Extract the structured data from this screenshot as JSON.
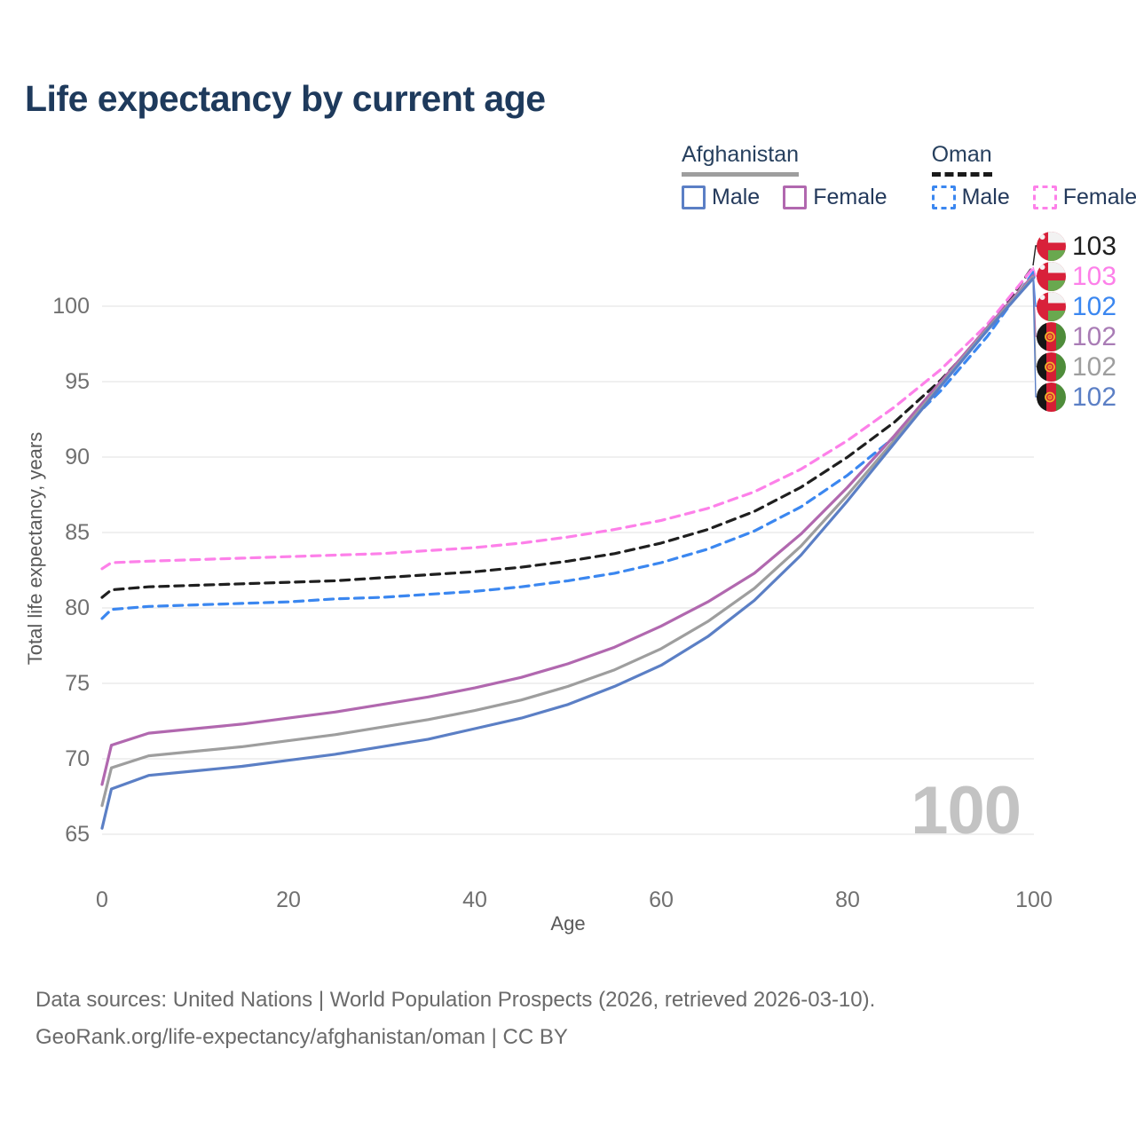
{
  "title": "Life expectancy by current age",
  "legend": {
    "groups": [
      {
        "label": "Afghanistan",
        "line_style": "solid",
        "underline_color": "#9e9e9e",
        "items": [
          {
            "label": "Male",
            "color": "#5b7fc5",
            "dashed": false
          },
          {
            "label": "Female",
            "color": "#b168af",
            "dashed": false
          }
        ]
      },
      {
        "label": "Oman",
        "line_style": "dashed",
        "underline_color": "#1a1a1a",
        "items": [
          {
            "label": "Male",
            "color": "#3b87f0",
            "dashed": true
          },
          {
            "label": "Female",
            "color": "#fd80e9",
            "dashed": true
          }
        ]
      }
    ]
  },
  "watermark_age": "100",
  "footer": {
    "line1": "Data sources: United Nations | World Population Prospects (2026, retrieved 2026-03-10).",
    "line2": "GeoRank.org/life-expectancy/afghanistan/oman | CC BY"
  },
  "chart_data": {
    "type": "line",
    "title": "Life expectancy by current age",
    "xlabel": "Age",
    "ylabel": "Total life expectancy, years",
    "xlim": [
      0,
      100
    ],
    "ylim": [
      63.5,
      104
    ],
    "xticks": [
      0,
      20,
      40,
      60,
      80,
      100
    ],
    "yticks": [
      65,
      70,
      75,
      80,
      85,
      90,
      95,
      100
    ],
    "grid": "horizontal",
    "legend_position": "top-right",
    "x": [
      0,
      1,
      5,
      10,
      15,
      20,
      25,
      30,
      35,
      40,
      45,
      50,
      55,
      60,
      65,
      70,
      75,
      80,
      85,
      90,
      95,
      100
    ],
    "series": [
      {
        "id": "oman-total",
        "name": "Oman — Total",
        "color": "#1f1f1f",
        "dashed": true,
        "values": [
          80.7,
          81.2,
          81.4,
          81.5,
          81.6,
          81.7,
          81.8,
          82.0,
          82.2,
          82.4,
          82.7,
          83.1,
          83.6,
          84.3,
          85.2,
          86.4,
          88.0,
          90.0,
          92.3,
          95.1,
          98.4,
          102.7
        ]
      },
      {
        "id": "oman-female",
        "name": "Oman — Female",
        "color": "#fd80e9",
        "dashed": true,
        "values": [
          82.6,
          83.0,
          83.1,
          83.2,
          83.3,
          83.4,
          83.5,
          83.6,
          83.8,
          84.0,
          84.3,
          84.7,
          85.2,
          85.8,
          86.6,
          87.7,
          89.2,
          91.1,
          93.3,
          95.8,
          98.8,
          102.6
        ]
      },
      {
        "id": "oman-male",
        "name": "Oman — Male",
        "color": "#3b87f0",
        "dashed": true,
        "values": [
          79.3,
          79.9,
          80.1,
          80.2,
          80.3,
          80.4,
          80.6,
          80.7,
          80.9,
          81.1,
          81.4,
          81.8,
          82.3,
          83.0,
          83.9,
          85.1,
          86.7,
          88.8,
          91.3,
          94.4,
          98.0,
          102.3
        ]
      },
      {
        "id": "afghanistan-female",
        "name": "Afghanistan — Female",
        "color": "#b168af",
        "dashed": false,
        "values": [
          68.3,
          70.9,
          71.7,
          72.0,
          72.3,
          72.7,
          73.1,
          73.6,
          74.1,
          74.7,
          75.4,
          76.3,
          77.4,
          78.8,
          80.4,
          82.3,
          84.9,
          88.0,
          91.4,
          95.0,
          98.6,
          102.1
        ]
      },
      {
        "id": "afghanistan-total",
        "name": "Afghanistan — Total",
        "color": "#9e9e9e",
        "dashed": false,
        "values": [
          66.9,
          69.4,
          70.2,
          70.5,
          70.8,
          71.2,
          71.6,
          72.1,
          72.6,
          73.2,
          73.9,
          74.8,
          75.9,
          77.3,
          79.1,
          81.3,
          84.1,
          87.5,
          91.1,
          94.8,
          98.5,
          102.0
        ]
      },
      {
        "id": "afghanistan-male",
        "name": "Afghanistan — Male",
        "color": "#5b7fc5",
        "dashed": false,
        "values": [
          65.4,
          68.0,
          68.9,
          69.2,
          69.5,
          69.9,
          70.3,
          70.8,
          71.3,
          72.0,
          72.7,
          73.6,
          74.8,
          76.2,
          78.1,
          80.5,
          83.5,
          87.1,
          90.9,
          94.7,
          98.4,
          101.9
        ]
      }
    ],
    "endpoints": [
      {
        "series": "oman-total",
        "country": "Oman",
        "value": "103",
        "color": "#1f1f1f"
      },
      {
        "series": "oman-female",
        "country": "Oman",
        "value": "103",
        "color": "#fd80e9"
      },
      {
        "series": "oman-male",
        "country": "Oman",
        "value": "102",
        "color": "#3b87f0"
      },
      {
        "series": "afghanistan-female",
        "country": "Afghanistan",
        "value": "102",
        "color": "#a97cb5"
      },
      {
        "series": "afghanistan-total",
        "country": "Afghanistan",
        "value": "102",
        "color": "#9e9e9e"
      },
      {
        "series": "afghanistan-male",
        "country": "Afghanistan",
        "value": "102",
        "color": "#5b7fc5"
      }
    ]
  }
}
